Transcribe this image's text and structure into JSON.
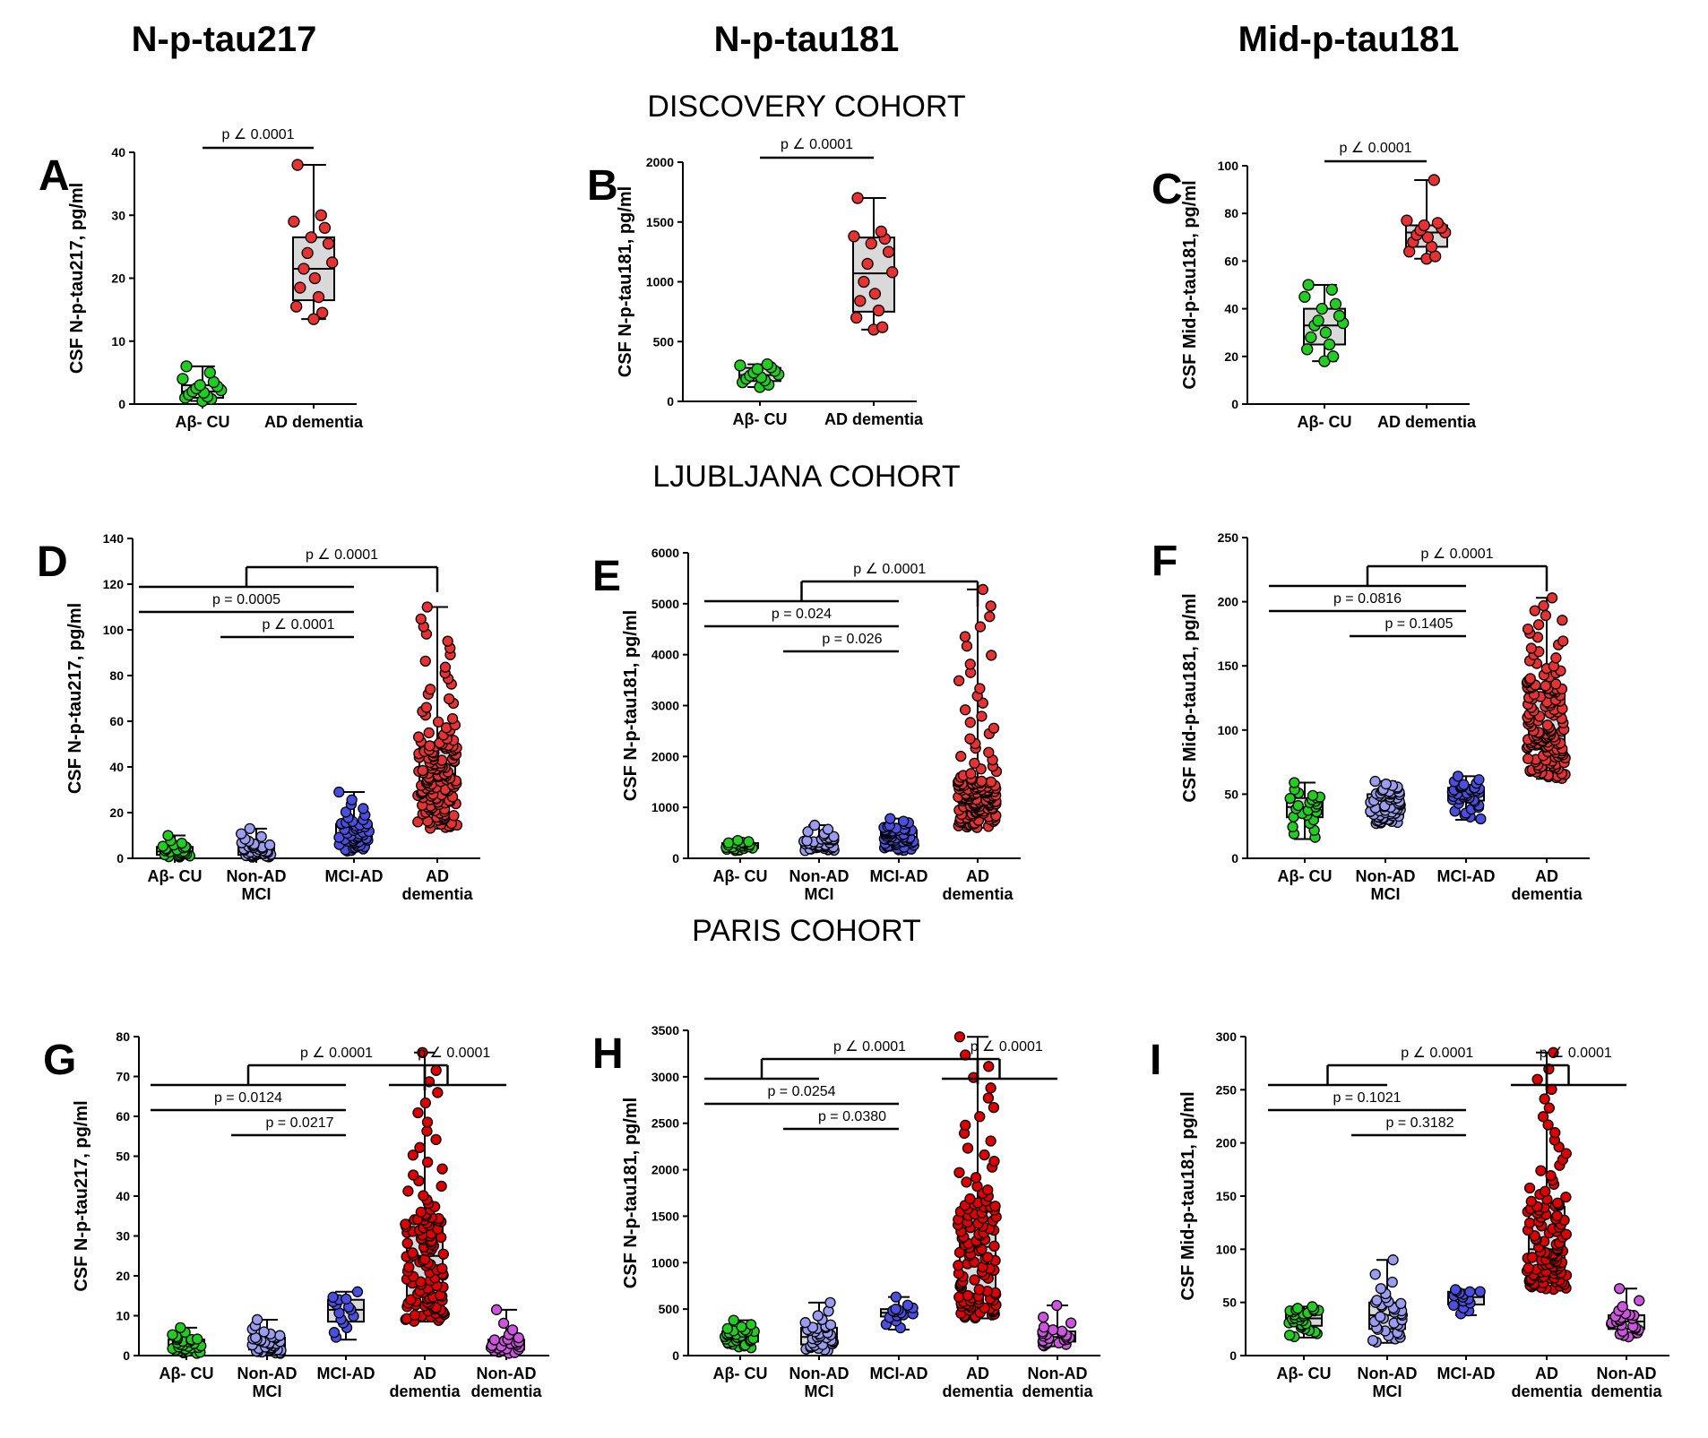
{
  "column_titles": [
    "N-p-tau217",
    "N-p-tau181",
    "Mid-p-tau181"
  ],
  "cohort_titles": [
    "DISCOVERY COHORT",
    "LJUBLJANA COHORT",
    "PARIS COHORT"
  ],
  "colors": {
    "Aβ- CU": "#22cc22",
    "Non-AD MCI": "#9a9cf0",
    "MCI-AD": "#4a4fe0",
    "AD dementia": "#e63232",
    "AD dementia dark": "#dd0000",
    "Non-AD dementia": "#cc55dd",
    "box_fill": "#d9d9d9"
  },
  "chart_data": [
    {
      "id": "A",
      "type": "box",
      "ylabel": "CSF N-p-tau217, pg/ml",
      "ylim": [
        0,
        40
      ],
      "yticks": [
        0,
        10,
        20,
        30,
        40
      ],
      "categories": [
        "Aβ- CU",
        "AD dementia"
      ],
      "groups": [
        {
          "name": "Aβ- CU",
          "color": "#22cc22",
          "box": {
            "min": 0.5,
            "q1": 1.0,
            "median": 2.0,
            "q3": 3.0,
            "max": 6.0
          },
          "points": [
            0.5,
            0.8,
            1.0,
            1.2,
            1.5,
            1.8,
            2.0,
            2.2,
            2.5,
            2.8,
            3.0,
            3.5,
            4.0,
            5.0,
            6.0
          ]
        },
        {
          "name": "AD dementia",
          "color": "#e63232",
          "box": {
            "min": 13.5,
            "q1": 16.5,
            "median": 21.5,
            "q3": 26.5,
            "max": 38.0
          },
          "points": [
            13.5,
            14.5,
            15.5,
            17.0,
            18.5,
            20.0,
            21.5,
            22.5,
            24.0,
            25.5,
            26.5,
            28.0,
            29.0,
            30.0,
            38.0
          ]
        }
      ],
      "comparisons": [
        {
          "groups": [
            0,
            1
          ],
          "text": "p ∠ 0.0001"
        }
      ]
    },
    {
      "id": "B",
      "type": "box",
      "ylabel": "CSF N-p-tau181, pg/ml",
      "ylim": [
        0,
        2000
      ],
      "yticks": [
        0,
        500,
        1000,
        1500,
        2000
      ],
      "categories": [
        "Aβ- CU",
        "AD dementia"
      ],
      "groups": [
        {
          "name": "Aβ- CU",
          "color": "#22cc22",
          "box": {
            "min": 120,
            "q1": 170,
            "median": 220,
            "q3": 280,
            "max": 310
          },
          "points": [
            120,
            140,
            160,
            175,
            190,
            200,
            215,
            225,
            240,
            255,
            270,
            285,
            300,
            310
          ]
        },
        {
          "name": "AD dementia",
          "color": "#e63232",
          "box": {
            "min": 600,
            "q1": 750,
            "median": 1070,
            "q3": 1370,
            "max": 1700
          },
          "points": [
            600,
            620,
            700,
            760,
            840,
            900,
            1000,
            1080,
            1150,
            1250,
            1320,
            1360,
            1380,
            1420,
            1700
          ]
        }
      ],
      "comparisons": [
        {
          "groups": [
            0,
            1
          ],
          "text": "p ∠ 0.0001"
        }
      ]
    },
    {
      "id": "C",
      "type": "box",
      "ylabel": "CSF Mid-p-tau181, pg/ml",
      "ylim": [
        0,
        100
      ],
      "yticks": [
        0,
        20,
        40,
        60,
        80,
        100
      ],
      "categories": [
        "Aβ- CU",
        "AD dementia"
      ],
      "groups": [
        {
          "name": "Aβ- CU",
          "color": "#22cc22",
          "box": {
            "min": 18,
            "q1": 25,
            "median": 33,
            "q3": 40,
            "max": 50
          },
          "points": [
            18,
            20,
            23,
            25,
            28,
            30,
            33,
            34,
            35,
            37,
            40,
            42,
            45,
            48,
            50
          ]
        },
        {
          "name": "AD dementia",
          "color": "#e63232",
          "box": {
            "min": 61,
            "q1": 66,
            "median": 72,
            "q3": 75,
            "max": 94
          },
          "points": [
            61,
            62,
            64,
            66,
            68,
            70,
            71,
            72,
            73,
            74,
            75,
            76,
            77,
            94
          ]
        }
      ],
      "comparisons": [
        {
          "groups": [
            0,
            1
          ],
          "text": "p ∠ 0.0001"
        }
      ]
    },
    {
      "id": "D",
      "type": "box",
      "ylabel": "CSF N-p-tau217, pg/ml",
      "ylim": [
        0,
        140
      ],
      "yticks": [
        0,
        20,
        40,
        60,
        80,
        100,
        120,
        140
      ],
      "categories": [
        "Aβ- CU",
        "Non-AD\nMCI",
        "MCI-AD",
        "AD\ndementia"
      ],
      "groups": [
        {
          "name": "Aβ- CU",
          "color": "#22cc22",
          "n": 25,
          "box": {
            "min": 0.5,
            "q1": 1.5,
            "median": 3,
            "q3": 5,
            "max": 10
          }
        },
        {
          "name": "Non-AD MCI",
          "color": "#9a9cf0",
          "n": 40,
          "box": {
            "min": 0.5,
            "q1": 1.5,
            "median": 3,
            "q3": 5.5,
            "max": 13
          }
        },
        {
          "name": "MCI-AD",
          "color": "#4a4fe0",
          "n": 50,
          "box": {
            "min": 3,
            "q1": 7,
            "median": 10,
            "q3": 15,
            "max": 29
          }
        },
        {
          "name": "AD dementia",
          "color": "#e63232",
          "n": 150,
          "box": {
            "min": 13,
            "q1": 26,
            "median": 37,
            "q3": 49,
            "max": 110
          }
        }
      ],
      "comparisons": [
        {
          "groups": [
            0,
            2
          ],
          "text": "p = 0.0005"
        },
        {
          "groups": [
            1,
            2
          ],
          "text": "p ∠ 0.0001"
        },
        {
          "type": "bracket",
          "from": [
            0,
            2
          ],
          "to": 3,
          "text": "p ∠ 0.0001"
        }
      ]
    },
    {
      "id": "E",
      "type": "box",
      "ylabel": "CSF N-p-tau181, pg/ml",
      "ylim": [
        0,
        6000
      ],
      "yticks": [
        0,
        1000,
        2000,
        3000,
        4000,
        5000,
        6000
      ],
      "categories": [
        "Aβ- CU",
        "Non-AD\nMCI",
        "MCI-AD",
        "AD\ndementia"
      ],
      "groups": [
        {
          "name": "Aβ- CU",
          "color": "#22cc22",
          "n": 25,
          "box": {
            "min": 150,
            "q1": 200,
            "median": 240,
            "q3": 300,
            "max": 350
          }
        },
        {
          "name": "Non-AD MCI",
          "color": "#9a9cf0",
          "n": 40,
          "box": {
            "min": 150,
            "q1": 220,
            "median": 280,
            "q3": 380,
            "max": 650
          }
        },
        {
          "name": "MCI-AD",
          "color": "#4a4fe0",
          "n": 55,
          "box": {
            "min": 150,
            "q1": 320,
            "median": 420,
            "q3": 550,
            "max": 780
          }
        },
        {
          "name": "AD dementia",
          "color": "#e63232",
          "n": 150,
          "box": {
            "min": 600,
            "q1": 1000,
            "median": 1250,
            "q3": 1500,
            "max": 5280
          }
        }
      ],
      "comparisons": [
        {
          "groups": [
            0,
            2
          ],
          "text": "p = 0.024"
        },
        {
          "groups": [
            1,
            2
          ],
          "text": "p = 0.026"
        },
        {
          "type": "bracket",
          "from": [
            0,
            2
          ],
          "to": 3,
          "text": "p ∠ 0.0001"
        }
      ]
    },
    {
      "id": "F",
      "type": "box",
      "ylabel": "CSF Mid-p-tau181, pg/ml",
      "ylim": [
        0,
        250
      ],
      "yticks": [
        0,
        50,
        100,
        150,
        200,
        250
      ],
      "categories": [
        "Aβ- CU",
        "Non-AD\nMCI",
        "MCI-AD",
        "AD\ndementia"
      ],
      "groups": [
        {
          "name": "Aβ- CU",
          "color": "#22cc22",
          "n": 25,
          "box": {
            "min": 15,
            "q1": 32,
            "median": 40,
            "q3": 47,
            "max": 59
          }
        },
        {
          "name": "Non-AD MCI",
          "color": "#9a9cf0",
          "n": 60,
          "box": {
            "min": 27,
            "q1": 33,
            "median": 40,
            "q3": 50,
            "max": 60
          }
        },
        {
          "name": "MCI-AD",
          "color": "#4a4fe0",
          "n": 40,
          "box": {
            "min": 30,
            "q1": 45,
            "median": 50,
            "q3": 55,
            "max": 64
          }
        },
        {
          "name": "AD dementia",
          "color": "#e63232",
          "n": 150,
          "box": {
            "min": 62,
            "q1": 85,
            "median": 100,
            "q3": 132,
            "max": 203
          }
        }
      ],
      "comparisons": [
        {
          "groups": [
            0,
            2
          ],
          "text": "p = 0.0816"
        },
        {
          "groups": [
            1,
            2
          ],
          "text": "p = 0.1405"
        },
        {
          "type": "bracket",
          "from": [
            0,
            2
          ],
          "to": 3,
          "text": "p ∠ 0.0001"
        }
      ]
    },
    {
      "id": "G",
      "type": "box",
      "ylabel": "CSF N-p-tau217, pg/ml",
      "ylim": [
        0,
        80
      ],
      "yticks": [
        0,
        10,
        20,
        30,
        40,
        50,
        60,
        70,
        80
      ],
      "categories": [
        "Aβ- CU",
        "Non-AD\nMCI",
        "MCI-AD",
        "AD\ndementia",
        "Non-AD\ndementia"
      ],
      "groups": [
        {
          "name": "Aβ- CU",
          "color": "#22cc22",
          "n": 30,
          "box": {
            "min": 0.5,
            "q1": 1.5,
            "median": 2.5,
            "q3": 4,
            "max": 7
          }
        },
        {
          "name": "Non-AD MCI",
          "color": "#9a9cf0",
          "n": 35,
          "box": {
            "min": 0.5,
            "q1": 1.5,
            "median": 3,
            "q3": 4.5,
            "max": 9
          }
        },
        {
          "name": "MCI-AD",
          "color": "#4a4fe0",
          "n": 15,
          "box": {
            "min": 4,
            "q1": 8.5,
            "median": 11.5,
            "q3": 14,
            "max": 16
          }
        },
        {
          "name": "AD dementia",
          "color": "#dd0000",
          "n": 120,
          "box": {
            "min": 8.5,
            "q1": 15,
            "median": 25,
            "q3": 34,
            "max": 76
          }
        },
        {
          "name": "Non-AD dementia",
          "color": "#cc55dd",
          "n": 25,
          "box": {
            "min": 0.5,
            "q1": 1.5,
            "median": 2.5,
            "q3": 4,
            "max": 11.5
          }
        }
      ],
      "comparisons": [
        {
          "groups": [
            0,
            2
          ],
          "text": "p = 0.0124"
        },
        {
          "groups": [
            1,
            2
          ],
          "text": "p = 0.0217"
        },
        {
          "type": "bracket",
          "from": [
            0,
            2
          ],
          "to": 3,
          "text": "p ∠ 0.0001"
        },
        {
          "type": "bracket",
          "from": [
            3,
            4
          ],
          "to": 3,
          "text": "p ∠ 0.0001"
        }
      ]
    },
    {
      "id": "H",
      "type": "box",
      "ylabel": "CSF N-p-tau181, pg/ml",
      "ylim": [
        0,
        3500
      ],
      "yticks": [
        0,
        500,
        1000,
        1500,
        2000,
        2500,
        3000,
        3500
      ],
      "categories": [
        "Aβ- CU",
        "Non-AD\nMCI",
        "MCI-AD",
        "AD\ndementia",
        "Non-AD\ndementia"
      ],
      "groups": [
        {
          "name": "Aβ- CU",
          "color": "#22cc22",
          "n": 30,
          "box": {
            "min": 80,
            "q1": 150,
            "median": 200,
            "q3": 260,
            "max": 380
          }
        },
        {
          "name": "Non-AD MCI",
          "color": "#9a9cf0",
          "n": 35,
          "box": {
            "min": 50,
            "q1": 120,
            "median": 200,
            "q3": 300,
            "max": 570
          }
        },
        {
          "name": "MCI-AD",
          "color": "#4a4fe0",
          "n": 15,
          "box": {
            "min": 280,
            "q1": 420,
            "median": 460,
            "q3": 500,
            "max": 630
          }
        },
        {
          "name": "AD dementia",
          "color": "#dd0000",
          "n": 120,
          "box": {
            "min": 400,
            "q1": 650,
            "median": 1170,
            "q3": 1600,
            "max": 3430
          }
        },
        {
          "name": "Non-AD dementia",
          "color": "#cc55dd",
          "n": 25,
          "box": {
            "min": 100,
            "q1": 150,
            "median": 200,
            "q3": 260,
            "max": 540
          }
        }
      ],
      "comparisons": [
        {
          "groups": [
            0,
            2
          ],
          "text": "p = 0.0254"
        },
        {
          "groups": [
            1,
            2
          ],
          "text": "p = 0.0380"
        },
        {
          "type": "bracket",
          "from": [
            0,
            1
          ],
          "to": 3,
          "text": "p ∠ 0.0001"
        },
        {
          "type": "bracket",
          "from": [
            3,
            4
          ],
          "to": 3,
          "text": "p ∠ 0.0001"
        }
      ]
    },
    {
      "id": "I",
      "type": "box",
      "ylabel": "CSF Mid-p-tau181, pg/ml",
      "ylim": [
        0,
        300
      ],
      "yticks": [
        0,
        50,
        100,
        150,
        200,
        250,
        300
      ],
      "categories": [
        "Aβ- CU",
        "Non-AD\nMCI",
        "MCI-AD",
        "AD\ndementia",
        "Non-AD\ndementia"
      ],
      "groups": [
        {
          "name": "Aβ- CU",
          "color": "#22cc22",
          "n": 30,
          "box": {
            "min": 17,
            "q1": 28,
            "median": 35,
            "q3": 42,
            "max": 46
          }
        },
        {
          "name": "Non-AD MCI",
          "color": "#9a9cf0",
          "n": 35,
          "box": {
            "min": 12,
            "q1": 25,
            "median": 38,
            "q3": 50,
            "max": 90
          }
        },
        {
          "name": "MCI-AD",
          "color": "#4a4fe0",
          "n": 15,
          "box": {
            "min": 38,
            "q1": 48,
            "median": 55,
            "q3": 60,
            "max": 62
          }
        },
        {
          "name": "AD dementia",
          "color": "#dd0000",
          "n": 120,
          "box": {
            "min": 62,
            "q1": 80,
            "median": 100,
            "q3": 140,
            "max": 285
          }
        },
        {
          "name": "Non-AD dementia",
          "color": "#cc55dd",
          "n": 25,
          "box": {
            "min": 17,
            "q1": 25,
            "median": 32,
            "q3": 38,
            "max": 63
          }
        }
      ],
      "comparisons": [
        {
          "groups": [
            0,
            2
          ],
          "text": "p = 0.1021"
        },
        {
          "groups": [
            1,
            2
          ],
          "text": "p = 0.3182"
        },
        {
          "type": "bracket",
          "from": [
            0,
            1
          ],
          "to": 3,
          "text": "p ∠ 0.0001"
        },
        {
          "type": "bracket",
          "from": [
            3,
            4
          ],
          "to": 3,
          "text": "p ∠ 0.0001"
        }
      ]
    }
  ]
}
